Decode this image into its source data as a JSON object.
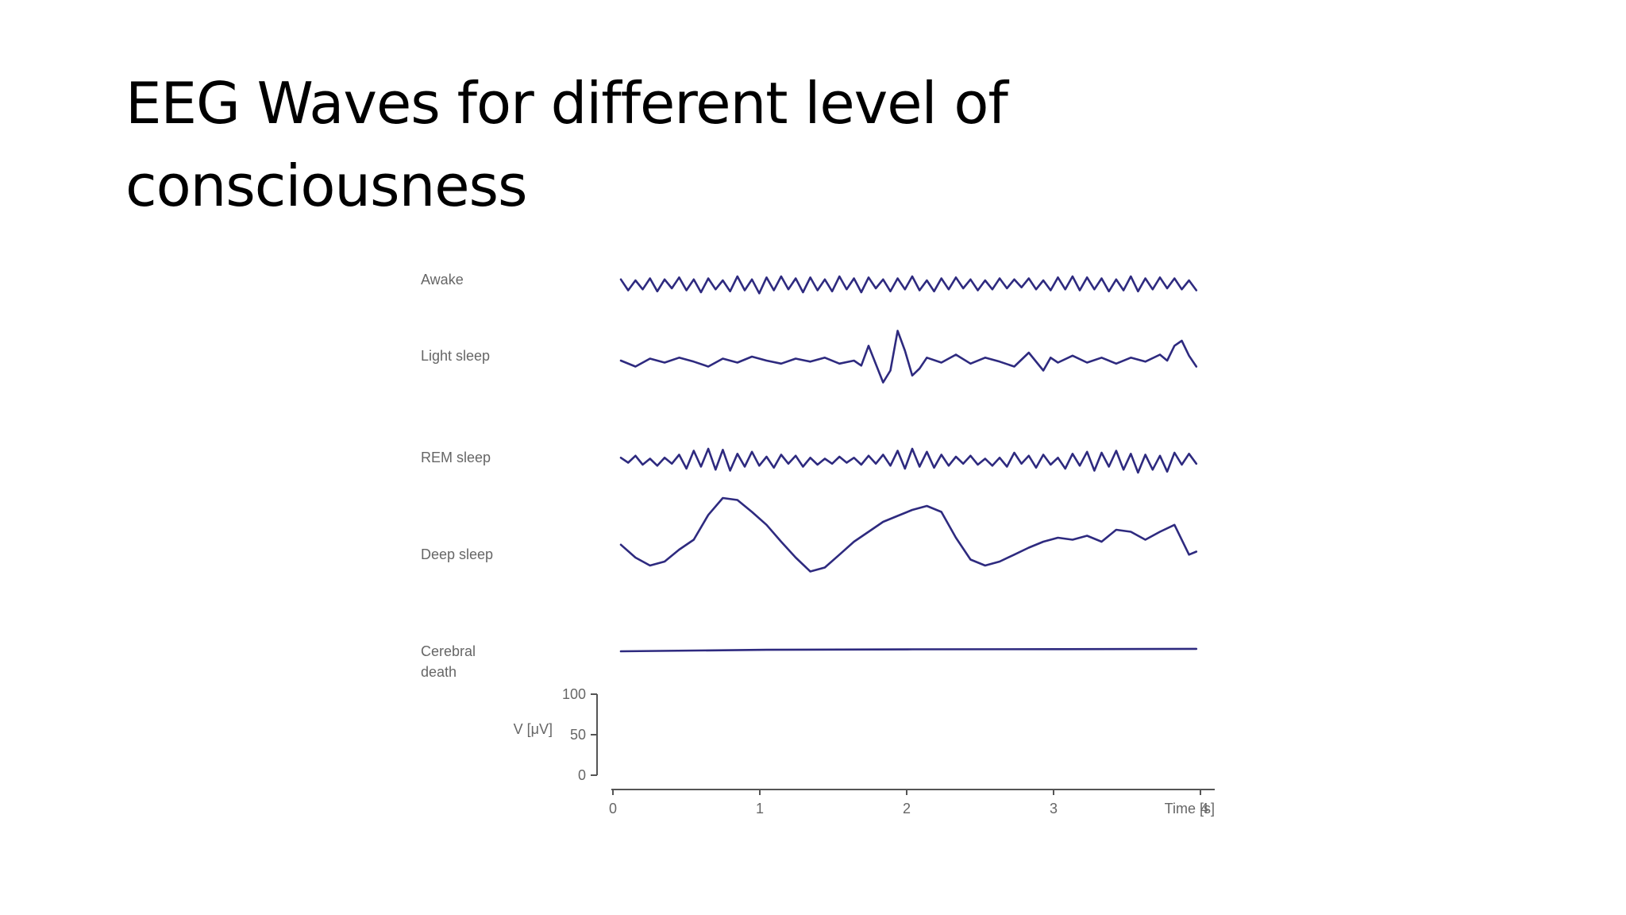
{
  "slide": {
    "title": "EEG Waves for different level of\nconsciousness"
  },
  "colors": {
    "trace": "#2e2a7f",
    "label": "#666666",
    "axis": "#555555",
    "title": "#000000"
  },
  "chart_data": {
    "type": "line",
    "title": "",
    "xlabel": "Time [s]",
    "ylabel": "V [μV]",
    "xlim": [
      0,
      4
    ],
    "x_ticks": [
      "0",
      "1",
      "2",
      "3",
      "4"
    ],
    "scale_bar": {
      "ticks": [
        "100",
        "50",
        "0"
      ],
      "range": [
        0,
        100
      ]
    },
    "series": [
      {
        "name": "Awake",
        "x": [
          0,
          0.05,
          0.1,
          0.15,
          0.2,
          0.25,
          0.3,
          0.35,
          0.4,
          0.45,
          0.5,
          0.55,
          0.6,
          0.65,
          0.7,
          0.75,
          0.8,
          0.85,
          0.9,
          0.95,
          1.0,
          1.05,
          1.1,
          1.15,
          1.2,
          1.25,
          1.3,
          1.35,
          1.4,
          1.45,
          1.5,
          1.55,
          1.6,
          1.65,
          1.7,
          1.75,
          1.8,
          1.85,
          1.9,
          1.95,
          2.0,
          2.05,
          2.1,
          2.15,
          2.2,
          2.25,
          2.3,
          2.35,
          2.4,
          2.45,
          2.5,
          2.55,
          2.6,
          2.65,
          2.7,
          2.75,
          2.8,
          2.85,
          2.9,
          2.95,
          3.0,
          3.05,
          3.1,
          3.15,
          3.2,
          3.25,
          3.3,
          3.35,
          3.4,
          3.45,
          3.5,
          3.55,
          3.6,
          3.65,
          3.7,
          3.75,
          3.8,
          3.85,
          3.9,
          3.95
        ],
        "values": [
          5,
          -6,
          4,
          -5,
          6,
          -7,
          5,
          -4,
          7,
          -6,
          5,
          -8,
          6,
          -5,
          4,
          -7,
          8,
          -6,
          5,
          -9,
          7,
          -6,
          8,
          -5,
          6,
          -8,
          7,
          -6,
          5,
          -7,
          8,
          -5,
          6,
          -8,
          7,
          -4,
          5,
          -7,
          6,
          -5,
          8,
          -6,
          4,
          -7,
          6,
          -5,
          7,
          -4,
          5,
          -6,
          4,
          -5,
          6,
          -4,
          5,
          -3,
          6,
          -5,
          4,
          -6,
          7,
          -5,
          8,
          -6,
          7,
          -5,
          6,
          -7,
          5,
          -6,
          8,
          -7,
          6,
          -5,
          7,
          -4,
          6,
          -5,
          4,
          -6
        ]
      },
      {
        "name": "Light sleep",
        "x": [
          0,
          0.1,
          0.2,
          0.3,
          0.4,
          0.5,
          0.6,
          0.7,
          0.8,
          0.9,
          1.0,
          1.1,
          1.2,
          1.3,
          1.4,
          1.5,
          1.6,
          1.65,
          1.7,
          1.8,
          1.85,
          1.9,
          1.95,
          2.0,
          2.05,
          2.1,
          2.2,
          2.3,
          2.4,
          2.5,
          2.6,
          2.7,
          2.8,
          2.9,
          2.95,
          3.0,
          3.1,
          3.2,
          3.3,
          3.4,
          3.5,
          3.6,
          3.7,
          3.75,
          3.8,
          3.85,
          3.9,
          3.95
        ],
        "values": [
          0,
          -6,
          2,
          -2,
          3,
          -1,
          -6,
          2,
          -2,
          4,
          0,
          -3,
          2,
          -1,
          3,
          -3,
          0,
          -5,
          15,
          -22,
          -10,
          30,
          10,
          -15,
          -8,
          3,
          -2,
          6,
          -3,
          3,
          -1,
          -6,
          8,
          -10,
          3,
          -2,
          5,
          -2,
          3,
          -3,
          3,
          -1,
          6,
          0,
          15,
          20,
          5,
          -6
        ]
      },
      {
        "name": "REM sleep",
        "x": [
          0,
          0.05,
          0.1,
          0.15,
          0.2,
          0.25,
          0.3,
          0.35,
          0.4,
          0.45,
          0.5,
          0.55,
          0.6,
          0.65,
          0.7,
          0.75,
          0.8,
          0.85,
          0.9,
          0.95,
          1.0,
          1.05,
          1.1,
          1.15,
          1.2,
          1.25,
          1.3,
          1.35,
          1.4,
          1.45,
          1.5,
          1.55,
          1.6,
          1.65,
          1.7,
          1.75,
          1.8,
          1.85,
          1.9,
          1.95,
          2.0,
          2.05,
          2.1,
          2.15,
          2.2,
          2.25,
          2.3,
          2.35,
          2.4,
          2.45,
          2.5,
          2.55,
          2.6,
          2.65,
          2.7,
          2.75,
          2.8,
          2.85,
          2.9,
          2.95,
          3.0,
          3.05,
          3.1,
          3.15,
          3.2,
          3.25,
          3.3,
          3.35,
          3.4,
          3.45,
          3.5,
          3.55,
          3.6,
          3.65,
          3.7,
          3.75,
          3.8,
          3.85,
          3.9,
          3.95
        ],
        "values": [
          3,
          -2,
          5,
          -4,
          2,
          -5,
          3,
          -3,
          6,
          -8,
          10,
          -6,
          12,
          -9,
          11,
          -10,
          7,
          -6,
          9,
          -5,
          4,
          -7,
          6,
          -3,
          5,
          -6,
          3,
          -4,
          2,
          -3,
          4,
          -2,
          3,
          -4,
          5,
          -3,
          6,
          -5,
          10,
          -8,
          12,
          -6,
          9,
          -7,
          6,
          -5,
          4,
          -3,
          5,
          -4,
          2,
          -5,
          3,
          -6,
          8,
          -3,
          5,
          -7,
          6,
          -4,
          3,
          -8,
          7,
          -5,
          9,
          -10,
          8,
          -6,
          10,
          -9,
          7,
          -12,
          6,
          -9,
          5,
          -11,
          8,
          -4,
          7,
          -3
        ]
      },
      {
        "name": "Deep sleep",
        "x": [
          0,
          0.1,
          0.2,
          0.3,
          0.4,
          0.5,
          0.6,
          0.7,
          0.8,
          0.9,
          1.0,
          1.1,
          1.2,
          1.3,
          1.4,
          1.5,
          1.6,
          1.7,
          1.8,
          1.9,
          2.0,
          2.1,
          2.2,
          2.3,
          2.4,
          2.5,
          2.6,
          2.7,
          2.8,
          2.9,
          3.0,
          3.1,
          3.2,
          3.3,
          3.4,
          3.5,
          3.6,
          3.7,
          3.8,
          3.9,
          3.95
        ],
        "values": [
          5,
          -8,
          -16,
          -12,
          0,
          10,
          35,
          52,
          50,
          38,
          25,
          8,
          -8,
          -22,
          -18,
          -5,
          8,
          18,
          28,
          34,
          40,
          44,
          38,
          12,
          -10,
          -16,
          -12,
          -5,
          2,
          8,
          12,
          10,
          14,
          8,
          20,
          18,
          10,
          18,
          25,
          -5,
          -2
        ]
      },
      {
        "name": "Cerebral death",
        "x": [
          0,
          1,
          2,
          3,
          3.95
        ],
        "values": [
          0,
          1.5,
          2,
          2.2,
          2.5
        ]
      }
    ]
  }
}
